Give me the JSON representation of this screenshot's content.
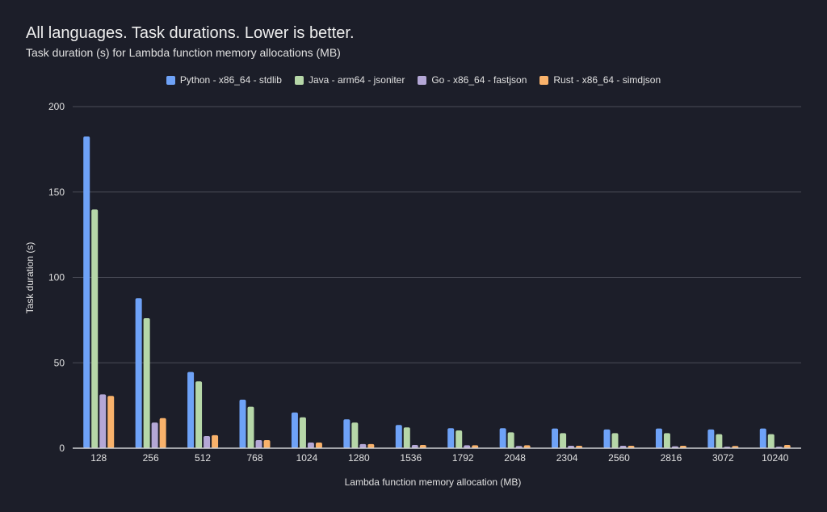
{
  "chart_data": {
    "type": "bar",
    "title": "All languages. Task durations. Lower is better.",
    "subtitle": "Task duration (s) for Lambda function memory allocations (MB)",
    "xlabel": "Lambda function memory allocation (MB)",
    "ylabel": "Task duration (s)",
    "ylim": [
      0,
      200
    ],
    "yticks": [
      0,
      50,
      100,
      150,
      200
    ],
    "grid": true,
    "legend_position": "top",
    "categories": [
      "128",
      "256",
      "512",
      "768",
      "1024",
      "1280",
      "1536",
      "1792",
      "2048",
      "2304",
      "2560",
      "2816",
      "3072",
      "10240"
    ],
    "series": [
      {
        "name": "Python - x86_64 - stdlib",
        "color": "#6ea2f7",
        "values": [
          182.5,
          87.8,
          44.6,
          28.4,
          20.9,
          16.9,
          13.6,
          11.7,
          11.7,
          11.5,
          11.0,
          11.5,
          11.0,
          11.5
        ]
      },
      {
        "name": "Java - arm64 - jsoniter",
        "color": "#b6d7a8",
        "values": [
          139.8,
          76.1,
          39.1,
          24.3,
          18.1,
          15.0,
          12.2,
          10.4,
          9.3,
          8.8,
          8.8,
          8.8,
          8.2,
          8.2
        ]
      },
      {
        "name": "Go - x86_64 - fastjson",
        "color": "#b4a7d6",
        "values": [
          31.5,
          15.0,
          7.1,
          4.7,
          3.3,
          2.4,
          1.9,
          1.7,
          1.3,
          1.4,
          1.4,
          1.1,
          0.9,
          0.9
        ]
      },
      {
        "name": "Rust - x86_64 - simdjson",
        "color": "#f9b26b",
        "values": [
          30.6,
          17.6,
          7.6,
          4.7,
          3.3,
          2.4,
          1.9,
          1.7,
          1.7,
          1.4,
          1.4,
          1.4,
          1.3,
          1.9
        ]
      }
    ]
  }
}
